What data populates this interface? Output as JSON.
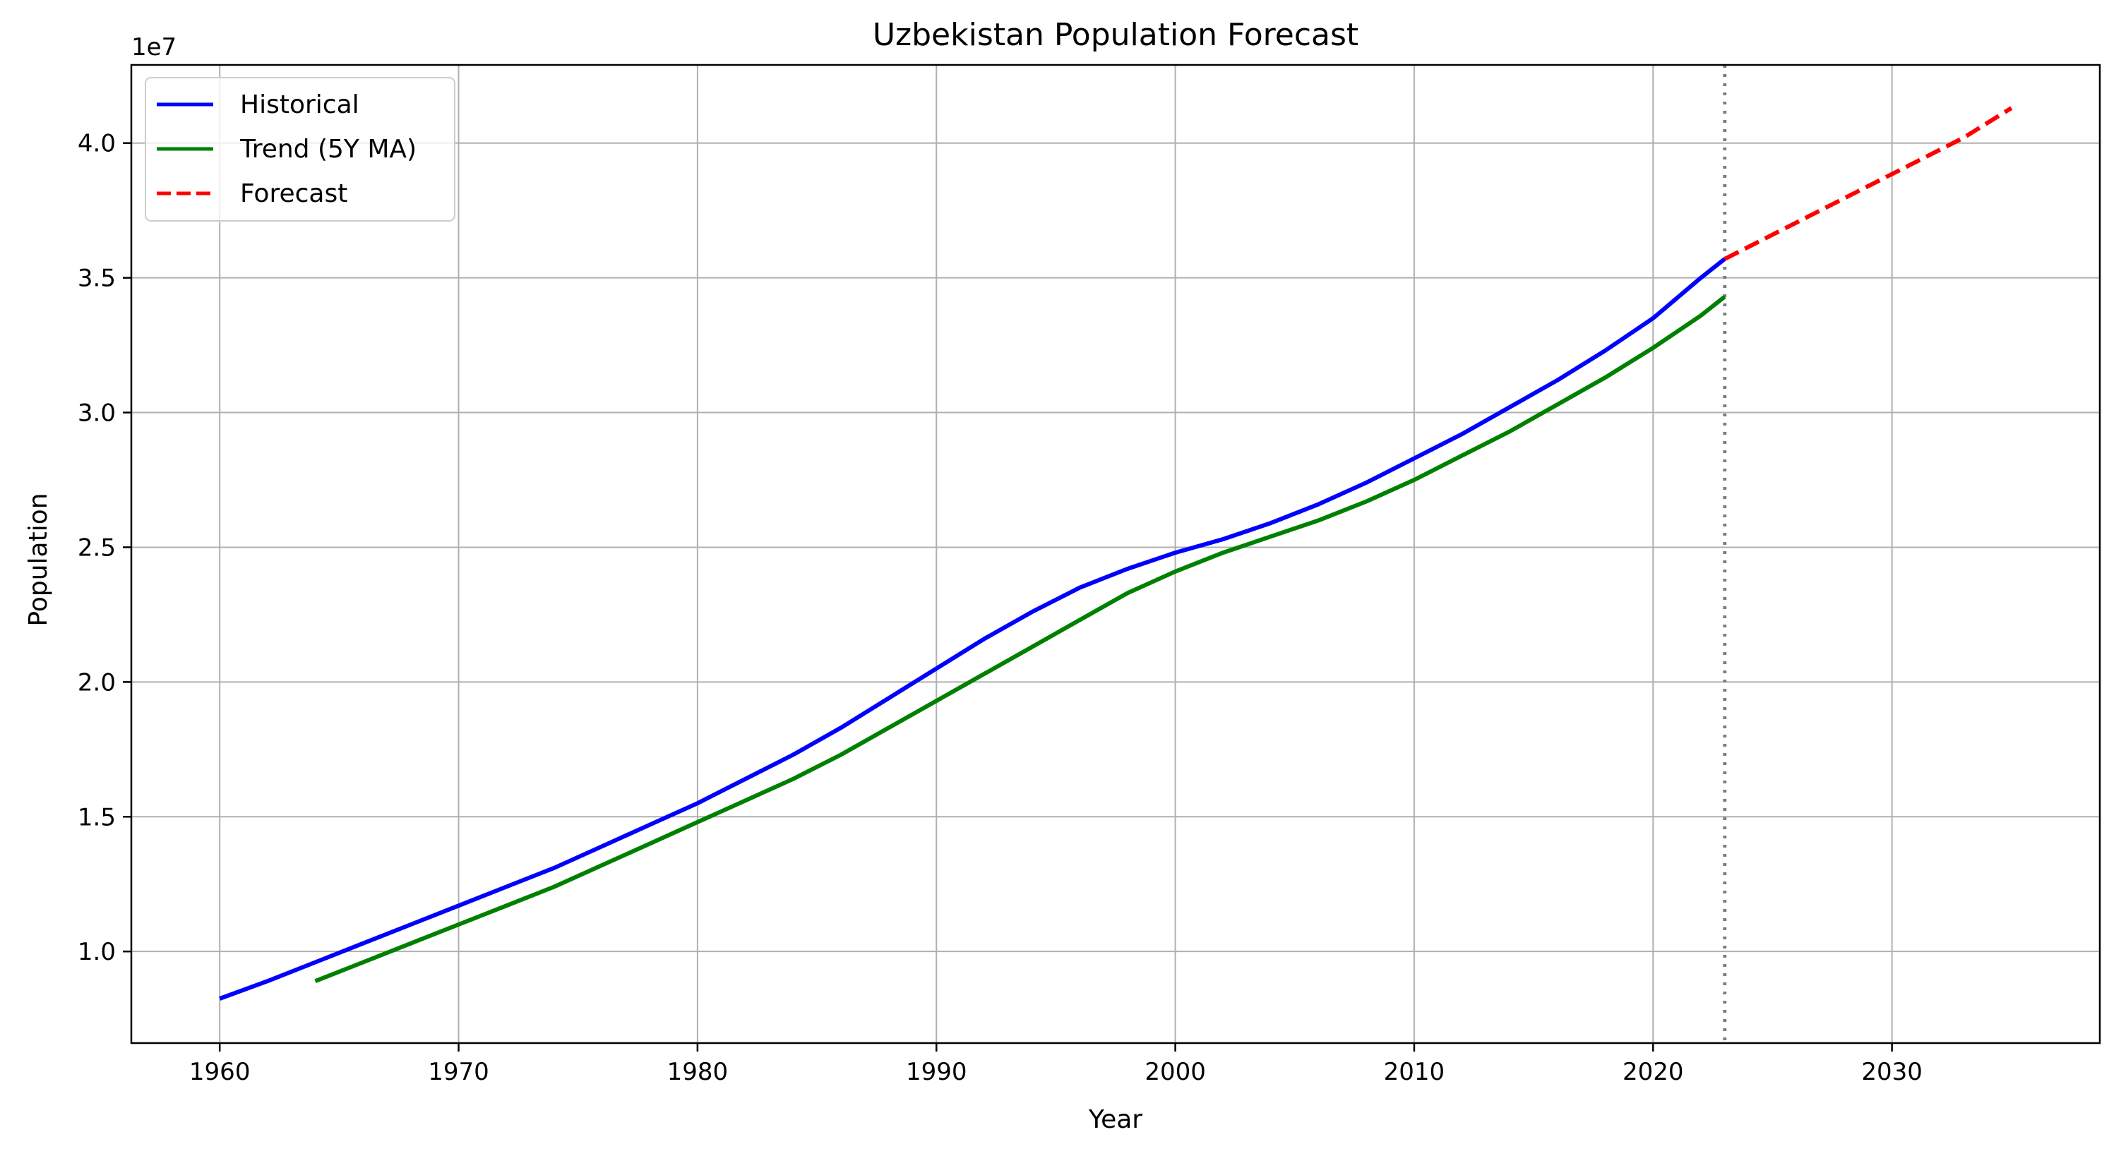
{
  "chart_data": {
    "type": "line",
    "title": "Uzbekistan Population Forecast",
    "xlabel": "Year",
    "ylabel": "Population",
    "y_offset_label": "1e7",
    "xlim": [
      1956.3,
      2038.7
    ],
    "ylim": [
      6.6,
      42.9
    ],
    "x_ticks": [
      1960,
      1970,
      1980,
      1990,
      2000,
      2010,
      2020,
      2030
    ],
    "x_tick_labels": [
      "1960",
      "1970",
      "1980",
      "1990",
      "2000",
      "2010",
      "2020",
      "2030"
    ],
    "y_ticks": [
      10,
      15,
      20,
      25,
      30,
      35,
      40
    ],
    "y_tick_labels": [
      "1.0",
      "1.5",
      "2.0",
      "2.5",
      "3.0",
      "3.5",
      "4.0"
    ],
    "grid": true,
    "legend_position": "upper-left",
    "forecast_start_marker": 2023,
    "series": [
      {
        "name": "Historical",
        "color": "#0000ff",
        "style": "solid",
        "x": [
          1960,
          1962,
          1964,
          1966,
          1968,
          1970,
          1972,
          1974,
          1976,
          1978,
          1980,
          1982,
          1984,
          1986,
          1988,
          1990,
          1992,
          1994,
          1996,
          1998,
          2000,
          2002,
          2004,
          2006,
          2008,
          2010,
          2012,
          2014,
          2016,
          2018,
          2020,
          2022,
          2023
        ],
        "values": [
          8.25,
          8.9,
          9.6,
          10.3,
          11.0,
          11.7,
          12.4,
          13.1,
          13.9,
          14.7,
          15.5,
          16.4,
          17.3,
          18.3,
          19.4,
          20.5,
          21.6,
          22.6,
          23.5,
          24.2,
          24.8,
          25.3,
          25.9,
          26.6,
          27.4,
          28.3,
          29.2,
          30.2,
          31.2,
          32.3,
          33.5,
          35.0,
          35.7
        ]
      },
      {
        "name": "Trend (5Y MA)",
        "color": "#008000",
        "style": "solid",
        "x": [
          1964,
          1966,
          1968,
          1970,
          1972,
          1974,
          1976,
          1978,
          1980,
          1982,
          1984,
          1986,
          1988,
          1990,
          1992,
          1994,
          1996,
          1998,
          2000,
          2002,
          2004,
          2006,
          2008,
          2010,
          2012,
          2014,
          2016,
          2018,
          2020,
          2022,
          2023
        ],
        "values": [
          8.9,
          9.6,
          10.3,
          11.0,
          11.7,
          12.4,
          13.2,
          14.0,
          14.8,
          15.6,
          16.4,
          17.3,
          18.3,
          19.3,
          20.3,
          21.3,
          22.3,
          23.3,
          24.1,
          24.8,
          25.4,
          26.0,
          26.7,
          27.5,
          28.4,
          29.3,
          30.3,
          31.3,
          32.4,
          33.6,
          34.3
        ]
      },
      {
        "name": "Forecast",
        "color": "#ff0000",
        "style": "dashed",
        "x": [
          2023,
          2025,
          2027,
          2029,
          2031,
          2033,
          2035
        ],
        "values": [
          35.7,
          36.6,
          37.5,
          38.4,
          39.3,
          40.2,
          41.3
        ]
      }
    ]
  }
}
